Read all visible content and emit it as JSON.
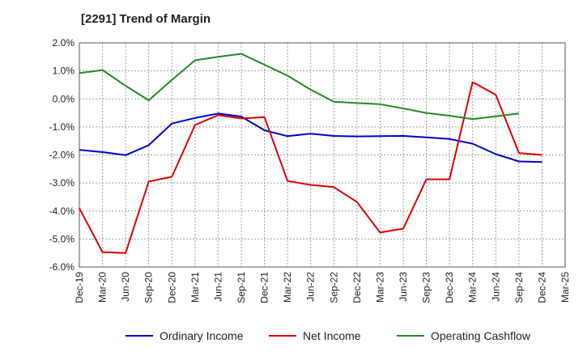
{
  "chart_data": {
    "type": "line",
    "title": "[2291]  Trend of Margin",
    "xlabel": "",
    "ylabel": "",
    "ylim": [
      -6.0,
      2.0
    ],
    "ytick_step": 1.0,
    "ytick_suffix": "%",
    "grid": true,
    "legend_position": "bottom",
    "categories": [
      "Dec-19",
      "Mar-20",
      "Jun-20",
      "Sep-20",
      "Dec-20",
      "Mar-21",
      "Jun-21",
      "Sep-21",
      "Dec-21",
      "Mar-22",
      "Jun-22",
      "Sep-22",
      "Dec-22",
      "Mar-23",
      "Jun-23",
      "Sep-23",
      "Dec-23",
      "Mar-24",
      "Jun-24",
      "Sep-24",
      "Dec-24",
      "Mar-25"
    ],
    "series": [
      {
        "name": "Ordinary Income",
        "color": "#0000cc",
        "values": [
          -1.82,
          -1.9,
          -2.01,
          -1.65,
          -0.88,
          -0.68,
          -0.52,
          -0.63,
          -1.12,
          -1.33,
          -1.24,
          -1.32,
          -1.34,
          -1.33,
          -1.32,
          -1.37,
          -1.43,
          -1.6,
          -1.97,
          -2.23,
          -2.25,
          null
        ]
      },
      {
        "name": "Net Income",
        "color": "#dd0000",
        "values": [
          -3.9,
          -5.47,
          -5.5,
          -2.95,
          -2.78,
          -0.93,
          -0.58,
          -0.7,
          -0.65,
          -2.93,
          -3.07,
          -3.15,
          -3.68,
          -4.77,
          -4.63,
          -2.87,
          -2.87,
          0.6,
          0.15,
          -1.93,
          -2.0,
          null
        ]
      },
      {
        "name": "Operating Cashflow",
        "color": "#228b22",
        "values": [
          0.92,
          1.03,
          0.47,
          -0.05,
          0.68,
          1.38,
          1.5,
          1.61,
          1.22,
          0.83,
          0.33,
          -0.1,
          -0.15,
          -0.19,
          -0.34,
          -0.5,
          -0.6,
          -0.72,
          -0.62,
          -0.52,
          null,
          null
        ]
      }
    ]
  }
}
